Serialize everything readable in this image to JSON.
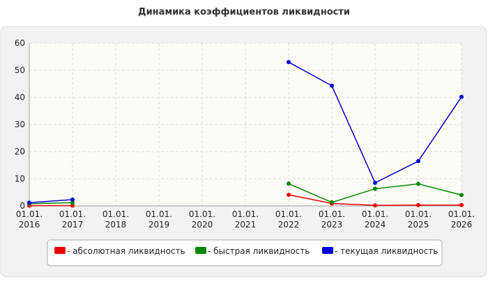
{
  "chart_data": {
    "type": "line",
    "title": "Динамика коэффициентов ликвидности",
    "categories": [
      [
        "01.01.",
        "2016"
      ],
      [
        "01.01.",
        "2017"
      ],
      [
        "01.01.",
        "2018"
      ],
      [
        "01.01.",
        "2019"
      ],
      [
        "01.01.",
        "2020"
      ],
      [
        "01.01.",
        "2021"
      ],
      [
        "01.01.",
        "2022"
      ],
      [
        "01.01.",
        "2023"
      ],
      [
        "01.01.",
        "2024"
      ],
      [
        "01.01.",
        "2025"
      ],
      [
        "01.01.",
        "2026"
      ]
    ],
    "series": [
      {
        "name": "- абсолютная ликвидность",
        "color": "#ee0000",
        "values": [
          0.1,
          0.1,
          null,
          null,
          null,
          null,
          4.1,
          0.9,
          0.2,
          0.3,
          0.3
        ]
      },
      {
        "name": "- быстрая ликвидность",
        "color": "#008800",
        "values": [
          0.8,
          1.2,
          null,
          null,
          null,
          null,
          8.2,
          1.3,
          6.3,
          8.1,
          4.0
        ]
      },
      {
        "name": "- текущая ликвидность",
        "color": "#0000dd",
        "values": [
          1.2,
          2.3,
          null,
          null,
          null,
          null,
          53,
          44.3,
          8.5,
          16.5,
          40.2
        ]
      }
    ],
    "ylim": [
      0,
      60
    ],
    "yticks": [
      0,
      10,
      20,
      30,
      40,
      50,
      60
    ],
    "grid": true
  }
}
